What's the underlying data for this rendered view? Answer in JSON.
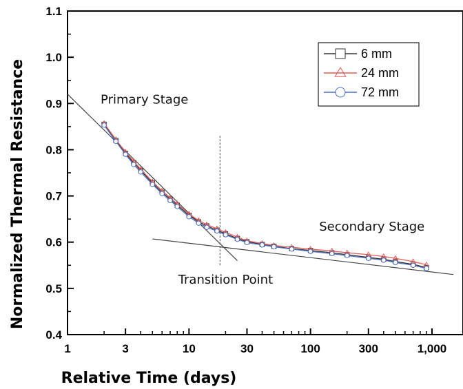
{
  "chart_data": {
    "type": "scatter",
    "x_scale": "log",
    "xlabel": "Relative Time (days)",
    "ylabel": "Normalized Thermal Resistance",
    "xlim": [
      1,
      1800
    ],
    "ylim": [
      0.4,
      1.1
    ],
    "x_ticks": [
      {
        "value": 1,
        "label": "1"
      },
      {
        "value": 3,
        "label": "3"
      },
      {
        "value": 10,
        "label": "10"
      },
      {
        "value": 30,
        "label": "30"
      },
      {
        "value": 100,
        "label": "100"
      },
      {
        "value": 300,
        "label": "300"
      },
      {
        "value": 1000,
        "label": "1,000"
      }
    ],
    "y_ticks": [
      {
        "value": 0.4,
        "label": "0.4"
      },
      {
        "value": 0.5,
        "label": "0.5"
      },
      {
        "value": 0.6,
        "label": "0.6"
      },
      {
        "value": 0.7,
        "label": "0.7"
      },
      {
        "value": 0.8,
        "label": "0.8"
      },
      {
        "value": 0.9,
        "label": "0.9"
      },
      {
        "value": 1.0,
        "label": "1.0"
      },
      {
        "value": 1.1,
        "label": "1.1"
      }
    ],
    "legend_position": "top-right",
    "series": [
      {
        "name": "6 mm",
        "marker": "square",
        "color": "#333333",
        "x": [
          2,
          2.5,
          3,
          3.5,
          4,
          5,
          6,
          7,
          8,
          10,
          12,
          14,
          17,
          20,
          25,
          30,
          40,
          50,
          70,
          100,
          150,
          200,
          300,
          400,
          500,
          700,
          900
        ],
        "y": [
          0.855,
          0.82,
          0.792,
          0.772,
          0.755,
          0.728,
          0.708,
          0.693,
          0.68,
          0.658,
          0.644,
          0.635,
          0.626,
          0.618,
          0.608,
          0.601,
          0.595,
          0.591,
          0.586,
          0.582,
          0.577,
          0.573,
          0.567,
          0.563,
          0.558,
          0.552,
          0.545
        ]
      },
      {
        "name": "24 mm",
        "marker": "triangle",
        "color": "#e05a5a",
        "x": [
          2,
          2.5,
          3,
          3.5,
          4,
          5,
          6,
          7,
          8,
          10,
          12,
          14,
          17,
          20,
          25,
          30,
          40,
          50,
          70,
          100,
          150,
          200,
          300,
          400,
          500,
          700,
          900
        ],
        "y": [
          0.857,
          0.822,
          0.795,
          0.775,
          0.758,
          0.731,
          0.711,
          0.696,
          0.683,
          0.661,
          0.647,
          0.638,
          0.629,
          0.621,
          0.611,
          0.603,
          0.597,
          0.593,
          0.589,
          0.585,
          0.581,
          0.577,
          0.573,
          0.569,
          0.565,
          0.558,
          0.551
        ]
      },
      {
        "name": "72 mm",
        "marker": "circle",
        "color": "#4a6fc0",
        "x": [
          2,
          2.5,
          3,
          3.5,
          4,
          5,
          6,
          7,
          8,
          10,
          12,
          14,
          17,
          20,
          25,
          30,
          40,
          50,
          70,
          100,
          150,
          200,
          300,
          400,
          500,
          700,
          900
        ],
        "y": [
          0.853,
          0.818,
          0.79,
          0.768,
          0.752,
          0.725,
          0.705,
          0.69,
          0.677,
          0.655,
          0.641,
          0.632,
          0.624,
          0.616,
          0.606,
          0.599,
          0.594,
          0.59,
          0.585,
          0.58,
          0.575,
          0.571,
          0.565,
          0.561,
          0.556,
          0.55,
          0.543
        ]
      }
    ],
    "fit_lines": [
      {
        "x": [
          1,
          25
        ],
        "y": [
          0.92,
          0.56
        ]
      },
      {
        "x": [
          5,
          1500
        ],
        "y": [
          0.607,
          0.53
        ]
      }
    ],
    "transition_line_x": 18,
    "transition_line_y": [
      0.55,
      0.83
    ],
    "annotations": [
      {
        "text": "Primary Stage",
        "x": 4.3,
        "y": 0.9
      },
      {
        "text": "Secondary Stage",
        "x": 320,
        "y": 0.625
      },
      {
        "text": "Transition Point",
        "x": 20,
        "y": 0.51
      }
    ]
  }
}
